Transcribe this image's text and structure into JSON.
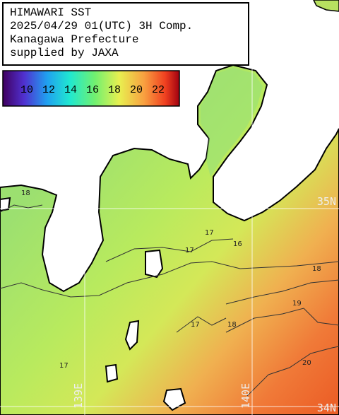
{
  "header": {
    "lines": [
      "HIMAWARI SST",
      "2025/04/29 01(UTC) 3H Comp.",
      "Kanagawa Prefecture",
      "supplied by JAXA"
    ]
  },
  "colorbar": {
    "ticks": [
      10,
      12,
      14,
      16,
      18,
      20,
      22
    ]
  },
  "grid_labels": {
    "lat_35": "35N",
    "lat_34": "34N",
    "lon_139": "139E",
    "lon_140": "140E"
  },
  "contour_labels": [
    18,
    17,
    17,
    16,
    18,
    19,
    20,
    17,
    18,
    17
  ]
}
